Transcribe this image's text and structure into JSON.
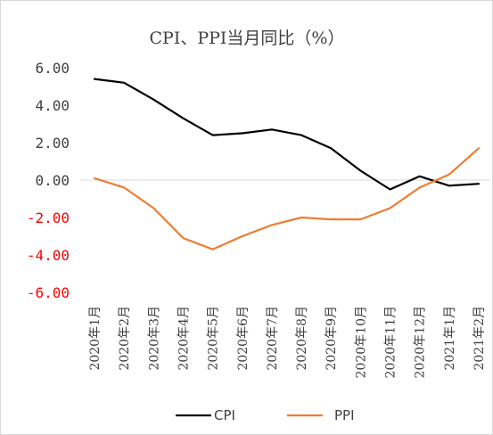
{
  "chart_data": {
    "type": "line",
    "title": "CPI、PPI当月同比（%）",
    "xlabel": "",
    "ylabel": "",
    "categories": [
      "2020年1月",
      "2020年2月",
      "2020年3月",
      "2020年4月",
      "2020年5月",
      "2020年6月",
      "2020年7月",
      "2020年8月",
      "2020年9月",
      "2020年10月",
      "2020年11月",
      "2020年12月",
      "2021年1月",
      "2021年2月"
    ],
    "ylim": [
      -6,
      6
    ],
    "yticks": [
      "6.00",
      "4.00",
      "2.00",
      "0.00",
      "-2.00",
      "-4.00",
      "-6.00"
    ],
    "grid": false,
    "legend_position": "bottom",
    "series": [
      {
        "name": "CPI",
        "color": "#000000",
        "values": [
          5.4,
          5.2,
          4.3,
          3.3,
          2.4,
          2.5,
          2.7,
          2.4,
          1.7,
          0.5,
          -0.5,
          0.2,
          -0.3,
          -0.2
        ]
      },
      {
        "name": "PPI",
        "color": "#ed7d31",
        "values": [
          0.1,
          -0.4,
          -1.5,
          -3.1,
          -3.7,
          -3.0,
          -2.4,
          -2.0,
          -2.1,
          -2.1,
          -1.5,
          -0.4,
          0.3,
          1.7
        ]
      }
    ],
    "colors": {
      "positive_tick": "#404040",
      "negative_tick": "#ff0000",
      "axis": "#d9d9d9"
    }
  }
}
